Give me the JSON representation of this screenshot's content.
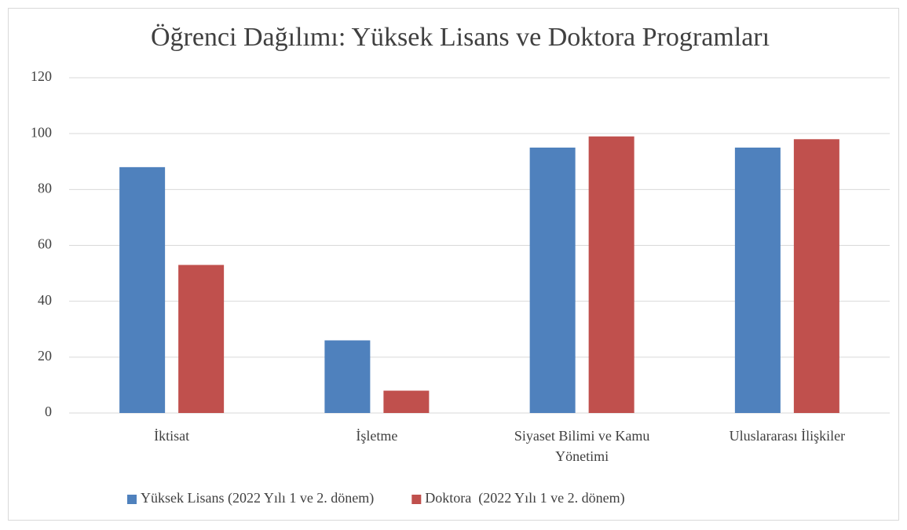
{
  "chart_data": {
    "type": "bar",
    "title": "Öğrenci Dağılımı: Yüksek Lisans ve Doktora Programları",
    "categories": [
      "İktisat",
      "İşletme",
      "Siyaset Bilimi ve Kamu Yönetimi",
      "Uluslararası İlişkiler"
    ],
    "series": [
      {
        "name": "Yüksek Lisans (2022 Yılı 1 ve 2. dönem)",
        "color": "#4f81bd",
        "values": [
          88,
          26,
          95,
          95
        ]
      },
      {
        "name": "Doktora  (2022 Yılı 1 ve 2. dönem)",
        "color": "#c0504d",
        "values": [
          53,
          8,
          99,
          98
        ]
      }
    ],
    "ylim": [
      0,
      120
    ],
    "yticks": [
      0,
      20,
      40,
      60,
      80,
      100,
      120
    ],
    "grid": true,
    "legend": "bottom"
  }
}
